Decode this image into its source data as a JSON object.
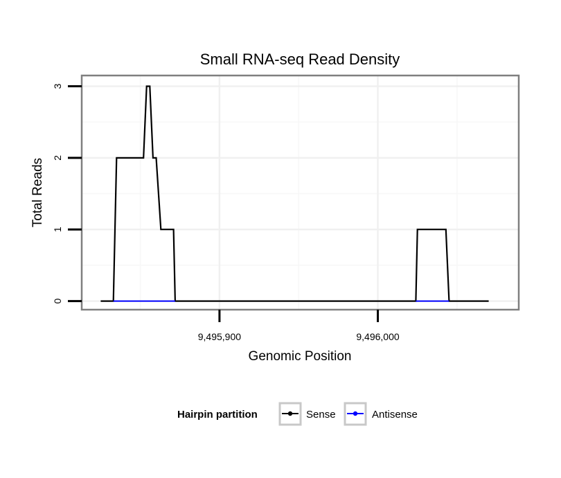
{
  "chart_data": {
    "type": "line",
    "title": "Small RNA-seq Read Density",
    "xlabel": "Genomic Position",
    "ylabel": "Total Reads",
    "xlim": [
      9495813,
      9496089
    ],
    "ylim": [
      -0.12,
      3.15
    ],
    "x_ticks": [
      9495900,
      9496000
    ],
    "x_tick_labels": [
      "9,495,900",
      "9,496,000"
    ],
    "y_ticks": [
      0,
      1,
      2,
      3
    ],
    "y_tick_labels": [
      "0",
      "1",
      "2",
      "3"
    ],
    "grid": true,
    "legend_title": "Hairpin partition",
    "legend_position": "bottom",
    "series": [
      {
        "name": "Sense",
        "color": "#000000",
        "x": [
          9495825,
          9495833,
          9495835,
          9495852,
          9495854,
          9495856,
          9495858,
          9495860,
          9495863,
          9495865,
          9495871,
          9495872,
          9496024,
          9496025,
          9496043,
          9496045,
          9496070
        ],
        "y": [
          0,
          0,
          2,
          2,
          3,
          3,
          2,
          2,
          1,
          1,
          1,
          0,
          0,
          1,
          1,
          0,
          0
        ]
      },
      {
        "name": "Antisense",
        "color": "#0000ff",
        "x": [
          9495833,
          9495872,
          9496024,
          9496045
        ],
        "y": [
          0,
          0,
          0,
          0
        ],
        "segments": [
          [
            0,
            1
          ],
          [
            2,
            3
          ]
        ]
      }
    ]
  }
}
